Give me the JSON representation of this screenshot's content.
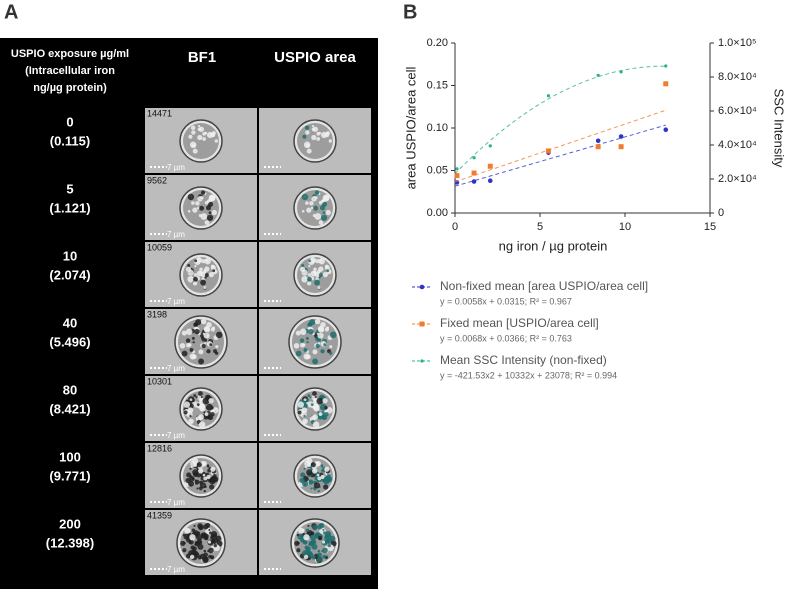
{
  "panel_a": {
    "label": "A",
    "header": {
      "lines": [
        "USPIO exposure µg/ml",
        "(Intracellular iron",
        "ng/µg protein)"
      ],
      "columns": [
        "BF1",
        "USPIO area"
      ]
    },
    "rows": [
      {
        "exposure": "0",
        "iron": "(0.115)",
        "image_id": "14471",
        "scale": "7 µm"
      },
      {
        "exposure": "5",
        "iron": "(1.121)",
        "image_id": "9562",
        "scale": "7 µm"
      },
      {
        "exposure": "10",
        "iron": "(2.074)",
        "image_id": "10059",
        "scale": "7 µm"
      },
      {
        "exposure": "40",
        "iron": "(5.496)",
        "image_id": "3198",
        "scale": "7 µm"
      },
      {
        "exposure": "80",
        "iron": "(8.421)",
        "image_id": "10301",
        "scale": "7 µm"
      },
      {
        "exposure": "100",
        "iron": "(9.771)",
        "image_id": "12816",
        "scale": "7 µm"
      },
      {
        "exposure": "200",
        "iron": "(12.398)",
        "image_id": "41359",
        "scale": "7 µm"
      }
    ]
  },
  "chart_data": {
    "type": "scatter",
    "panel_label": "B",
    "x_label": "ng iron / µg protein",
    "y_label": "area USPIO/area cell",
    "y2_label": "SSC Intensity",
    "xlim": [
      0,
      15
    ],
    "xticks": [
      0,
      5,
      10,
      15
    ],
    "ylim": [
      0,
      0.2
    ],
    "yticks": [
      {
        "value": 0,
        "label": "0.00"
      },
      {
        "value": 0.05,
        "label": "0.05"
      },
      {
        "value": 0.1,
        "label": "0.10"
      },
      {
        "value": 0.15,
        "label": "0.15"
      },
      {
        "value": 0.2,
        "label": "0.20"
      }
    ],
    "y2lim": [
      0,
      100000
    ],
    "y2ticks": [
      0,
      {
        "value": 20000,
        "label": "2.0×10⁴"
      },
      {
        "value": 40000,
        "label": "4.0×10⁴"
      },
      {
        "value": 60000,
        "label": "6.0×10⁴"
      },
      {
        "value": 80000,
        "label": "8.0×10⁴"
      },
      {
        "value": 100000,
        "label": "1.0×10⁵"
      }
    ],
    "x": [
      0.115,
      1.121,
      2.074,
      5.496,
      8.421,
      9.771,
      12.398
    ],
    "series": [
      {
        "name": "Non-fixed mean [area USPIO/area cell]",
        "color": "#2b35c8",
        "marker": "circle",
        "values": [
          0.036,
          0.037,
          0.038,
          0.071,
          0.085,
          0.09,
          0.098
        ],
        "equation": "y = 0.0058x + 0.0315; R² = 0.967",
        "fit": [
          0.0315,
          0.0058
        ]
      },
      {
        "name": "Fixed mean [USPIO/area cell]",
        "color": "#f07c30",
        "marker": "square",
        "values": [
          0.044,
          0.047,
          0.055,
          0.073,
          0.078,
          0.078,
          0.152
        ],
        "equation": "y = 0.0068x + 0.0366; R² = 0.763",
        "fit": [
          0.0366,
          0.0068
        ]
      },
      {
        "name": "Mean SSC Intensity (non-fixed)",
        "color": "#2bb08c",
        "marker": "dot",
        "axis": "y2",
        "values": [
          26000,
          32500,
          39500,
          69000,
          81000,
          83000,
          86500
        ],
        "equation": "y = -421.53x2 + 10332x + 23078; R² = 0.994",
        "fit": [
          23078,
          10332,
          -421.53
        ]
      }
    ]
  }
}
